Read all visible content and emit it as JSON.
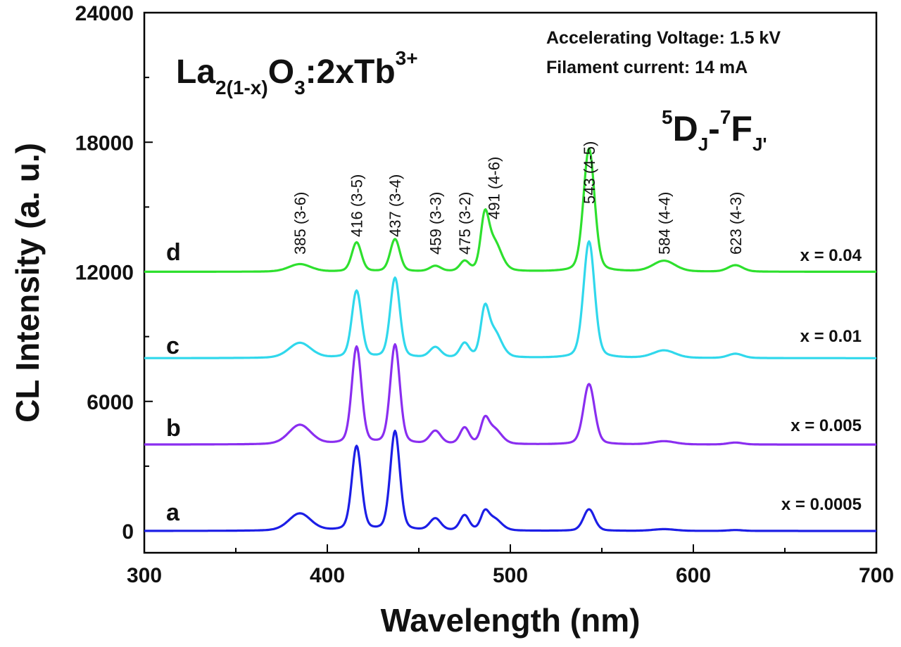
{
  "chart_data": {
    "type": "line",
    "title": "",
    "xlabel": "Wavelength (nm)",
    "ylabel": "CL Intensity (a. u.)",
    "xlim": [
      300,
      700
    ],
    "ylim": [
      0,
      24000
    ],
    "xticks": [
      "300",
      "400",
      "500",
      "600",
      "700"
    ],
    "yticks": [
      "0",
      "6000",
      "12000",
      "18000",
      "24000"
    ],
    "xtick_values": [
      300,
      400,
      500,
      600,
      700
    ],
    "ytick_values": [
      0,
      6000,
      12000,
      18000,
      24000
    ],
    "formula": {
      "base": "La",
      "sub1": "2(1-x)",
      "mid": "O",
      "sub2": "3",
      "tail": ":2xTb",
      "sup": "3+"
    },
    "transition": {
      "a_sup": "5",
      "a": "D",
      "a_sub": "J",
      "dash": "-",
      "b_sup": "7",
      "b": "F",
      "b_sub": "J'"
    },
    "info_lines": [
      "Accelerating Voltage: 1.5 kV",
      "Filament current: 14 mA"
    ],
    "peak_labels": [
      {
        "x": 385,
        "text": "385 (3-6)"
      },
      {
        "x": 416,
        "text": "416 (3-5)"
      },
      {
        "x": 437,
        "text": "437 (3-4)"
      },
      {
        "x": 459,
        "text": "459 (3-3)"
      },
      {
        "x": 475,
        "text": "475 (3-2)"
      },
      {
        "x": 491,
        "text": "491 (4-6)"
      },
      {
        "x": 543,
        "text": "543 (4-5)"
      },
      {
        "x": 584,
        "text": "584 (4-4)"
      },
      {
        "x": 623,
        "text": "623 (4-3)"
      }
    ],
    "series": [
      {
        "name": "a",
        "concentration": "x = 0.0005",
        "color": "#1c1ee6",
        "baseline": 0,
        "peaks": [
          [
            385,
            800
          ],
          [
            416,
            3900
          ],
          [
            437,
            4600
          ],
          [
            459,
            550
          ],
          [
            475,
            700
          ],
          [
            486,
            700
          ],
          [
            491,
            550
          ],
          [
            543,
            1000
          ],
          [
            584,
            80
          ],
          [
            623,
            40
          ]
        ]
      },
      {
        "name": "b",
        "concentration": "x = 0.005",
        "color": "#8a2ef0",
        "baseline": 4000,
        "peaks": [
          [
            385,
            900
          ],
          [
            416,
            4500
          ],
          [
            437,
            4600
          ],
          [
            459,
            600
          ],
          [
            475,
            750
          ],
          [
            486,
            950
          ],
          [
            491,
            700
          ],
          [
            543,
            2800
          ],
          [
            584,
            150
          ],
          [
            623,
            90
          ]
        ]
      },
      {
        "name": "c",
        "concentration": "x = 0.01",
        "color": "#30d8ec",
        "baseline": 8000,
        "peaks": [
          [
            385,
            700
          ],
          [
            416,
            3100
          ],
          [
            437,
            3700
          ],
          [
            459,
            480
          ],
          [
            475,
            650
          ],
          [
            486,
            1900
          ],
          [
            491,
            1200
          ],
          [
            543,
            5400
          ],
          [
            584,
            350
          ],
          [
            623,
            200
          ]
        ]
      },
      {
        "name": "d",
        "concentration": "x = 0.04",
        "color": "#2ee02e",
        "baseline": 12000,
        "peaks": [
          [
            385,
            350
          ],
          [
            416,
            1350
          ],
          [
            437,
            1500
          ],
          [
            459,
            250
          ],
          [
            475,
            450
          ],
          [
            486,
            2200
          ],
          [
            491,
            1350
          ],
          [
            543,
            5700
          ],
          [
            584,
            500
          ],
          [
            623,
            300
          ]
        ]
      }
    ]
  }
}
